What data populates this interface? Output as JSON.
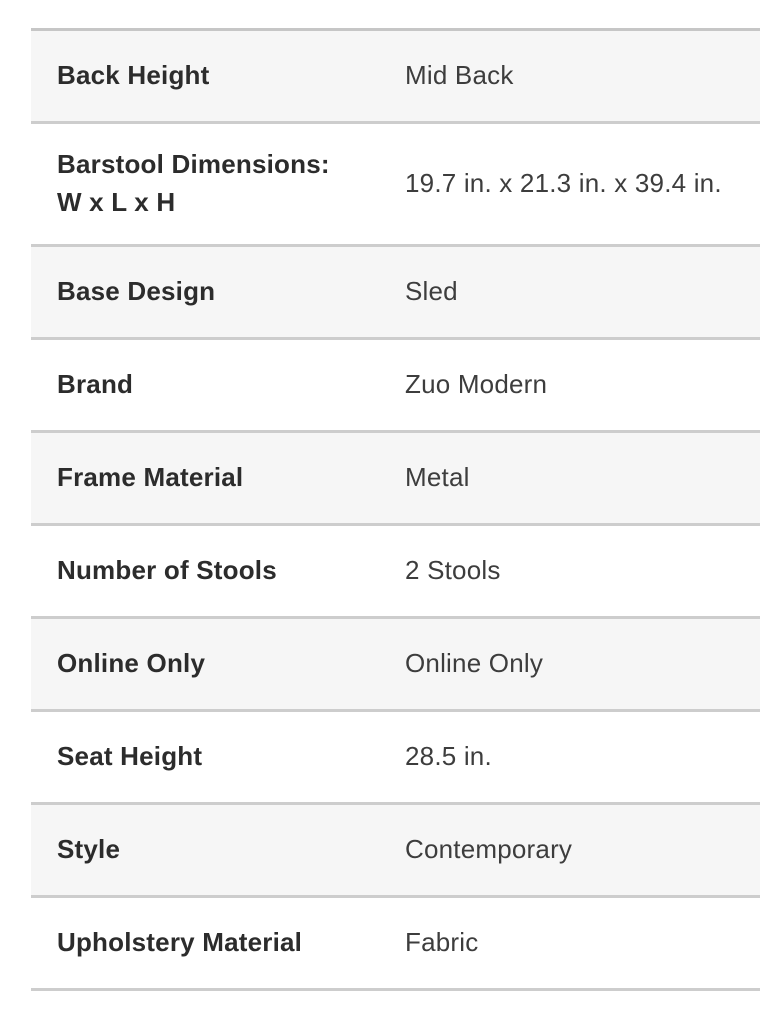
{
  "page": {
    "background_color": "#ffffff"
  },
  "specs_table": {
    "stripe_color": "#f6f6f6",
    "row_color": "#ffffff",
    "divider_color": "#cdcdcd",
    "label_color": "#2c2c2c",
    "value_color": "#3d3d3d",
    "rows": [
      {
        "label": "Back Height",
        "value": "Mid Back"
      },
      {
        "label": "Barstool Dimensions:\nW x L x H",
        "value": "19.7 in. x 21.3 in. x 39.4 in.",
        "tall": true
      },
      {
        "label": "Base Design",
        "value": "Sled"
      },
      {
        "label": "Brand",
        "value": "Zuo Modern"
      },
      {
        "label": "Frame Material",
        "value": "Metal"
      },
      {
        "label": "Number of Stools",
        "value": "2 Stools"
      },
      {
        "label": "Online Only",
        "value": "Online Only"
      },
      {
        "label": "Seat Height",
        "value": "28.5 in."
      },
      {
        "label": "Style",
        "value": "Contemporary"
      },
      {
        "label": "Upholstery Material",
        "value": "Fabric"
      }
    ]
  }
}
